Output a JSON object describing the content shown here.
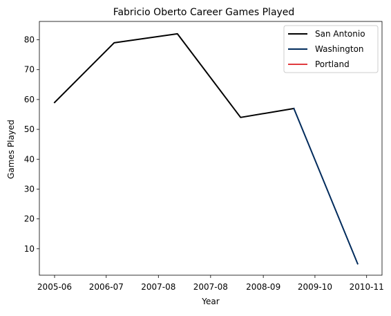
{
  "chart_data": {
    "type": "line",
    "title": "Fabricio Oberto Career Games Played",
    "xlabel": "Year",
    "ylabel": "Games Played",
    "x_tick_labels": [
      "2005-06",
      "2006-07",
      "2007-08",
      "2007-08",
      "2008-09",
      "2009-10",
      "2010-11"
    ],
    "y_ticks": [
      10,
      20,
      30,
      40,
      50,
      60,
      70,
      80
    ],
    "ylim": [
      1.15,
      86.15
    ],
    "grid": false,
    "legend_position": "top-right",
    "series": [
      {
        "name": "San Antonio",
        "color": "#000000",
        "points": [
          {
            "x": "2005-06",
            "y": 59
          },
          {
            "x": "2006-07",
            "y": 79
          },
          {
            "x": "2007-08",
            "y": 82
          },
          {
            "x": "2008-09",
            "y": 54
          },
          {
            "x": "2009-10",
            "y": 57
          }
        ]
      },
      {
        "name": "Washington",
        "color": "#002B5C",
        "points": [
          {
            "x": "2009-10",
            "y": 57
          },
          {
            "x": "2010-11",
            "y": 5
          }
        ]
      },
      {
        "name": "Portland",
        "color": "#E03A3E",
        "points": []
      }
    ]
  }
}
